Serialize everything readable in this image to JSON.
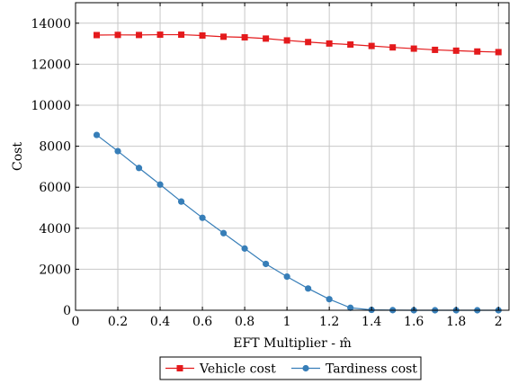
{
  "chart_data": {
    "type": "line",
    "title": "",
    "xlabel": "EFT Multiplier - m̂",
    "ylabel": "Cost",
    "xlim": [
      0,
      2.05
    ],
    "ylim": [
      0,
      15000
    ],
    "grid": true,
    "legend_position": "bottom-center",
    "x_ticks": [
      0,
      0.2,
      0.4,
      0.6,
      0.8,
      1,
      1.2,
      1.4,
      1.6,
      1.8,
      2
    ],
    "x_tick_labels": [
      "0",
      "0.2",
      "0.4",
      "0.6",
      "0.8",
      "1",
      "1.2",
      "1.4",
      "1.6",
      "1.8",
      "2"
    ],
    "y_ticks": [
      0,
      2000,
      4000,
      6000,
      8000,
      10000,
      12000,
      14000
    ],
    "y_tick_labels": [
      "0",
      "2000",
      "4000",
      "6000",
      "8000",
      "10000",
      "12000",
      "14000"
    ],
    "x": [
      0.1,
      0.2,
      0.3,
      0.4,
      0.5,
      0.6,
      0.7,
      0.8,
      0.9,
      1.0,
      1.1,
      1.2,
      1.3,
      1.4,
      1.5,
      1.6,
      1.7,
      1.8,
      1.9,
      2.0
    ],
    "series": [
      {
        "name": "Vehicle cost",
        "color": "#e41a1c",
        "marker": "square",
        "values": [
          13420,
          13430,
          13425,
          13440,
          13440,
          13400,
          13340,
          13310,
          13250,
          13160,
          13080,
          13010,
          12960,
          12890,
          12820,
          12760,
          12700,
          12660,
          12620,
          12590
        ]
      },
      {
        "name": "Tardiness cost",
        "color": "#377eb8",
        "marker": "circle",
        "values": [
          8550,
          7760,
          6940,
          6130,
          5300,
          4510,
          3760,
          3010,
          2260,
          1640,
          1060,
          540,
          120,
          20,
          5,
          0,
          0,
          0,
          0,
          0
        ]
      }
    ]
  }
}
